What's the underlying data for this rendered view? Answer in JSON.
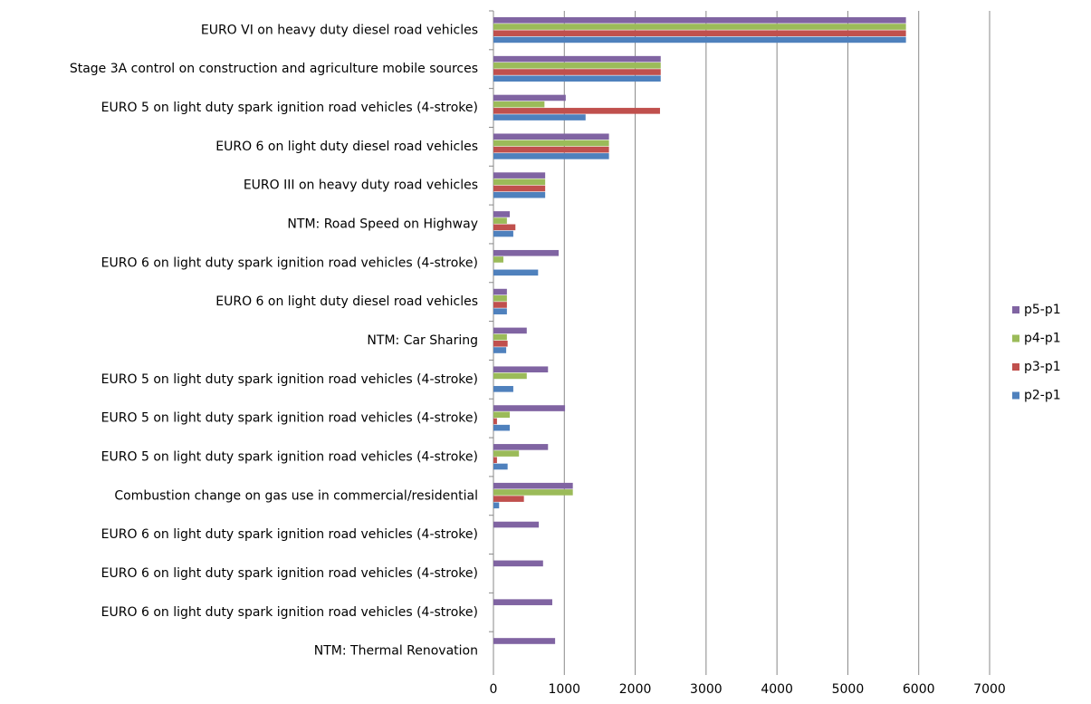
{
  "chart_data": {
    "type": "hbar",
    "categories": [
      "EURO VI on heavy duty diesel road vehicles",
      "Stage 3A control on construction and agriculture mobile sources",
      "EURO 5 on light duty spark ignition road vehicles (4-stroke)",
      "EURO 6 on light duty diesel road vehicles",
      "EURO III on heavy duty road vehicles",
      "NTM: Road Speed on Highway",
      "EURO 6 on light duty spark ignition road vehicles (4-stroke)",
      "EURO 6 on light duty diesel road vehicles",
      "NTM: Car Sharing",
      "EURO 5 on light duty spark ignition road vehicles (4-stroke)",
      "EURO 5 on light duty spark ignition road vehicles (4-stroke)",
      "EURO 5 on light duty spark ignition road vehicles (4-stroke)",
      "Combustion change on gas use in commercial/residential",
      "EURO 6 on light duty spark ignition road vehicles (4-stroke)",
      "EURO 6 on light duty spark ignition road vehicles (4-stroke)",
      "EURO 6 on light duty spark ignition road vehicles (4-stroke)",
      "NTM: Thermal Renovation"
    ],
    "series": [
      {
        "name": "p5-p1",
        "color": "#8064a2",
        "values": [
          5820,
          2360,
          1020,
          1630,
          730,
          230,
          920,
          190,
          470,
          770,
          1010,
          770,
          1120,
          640,
          700,
          830,
          870
        ]
      },
      {
        "name": "p4-p1",
        "color": "#9bbb59",
        "values": [
          5820,
          2360,
          720,
          1630,
          730,
          190,
          140,
          190,
          190,
          470,
          230,
          360,
          1120,
          0,
          0,
          0,
          0
        ]
      },
      {
        "name": "p3-p1",
        "color": "#c0504d",
        "values": [
          5820,
          2360,
          2350,
          1630,
          730,
          310,
          0,
          190,
          200,
          0,
          50,
          50,
          430,
          0,
          0,
          0,
          0
        ]
      },
      {
        "name": "p2-p1",
        "color": "#4f81bd",
        "values": [
          5820,
          2360,
          1300,
          1630,
          730,
          280,
          630,
          190,
          180,
          280,
          230,
          200,
          80,
          0,
          0,
          0,
          0
        ]
      }
    ],
    "xlim": [
      0,
      7000
    ],
    "xticks": [
      0,
      1000,
      2000,
      3000,
      4000,
      5000,
      6000,
      7000
    ],
    "grid": true
  }
}
